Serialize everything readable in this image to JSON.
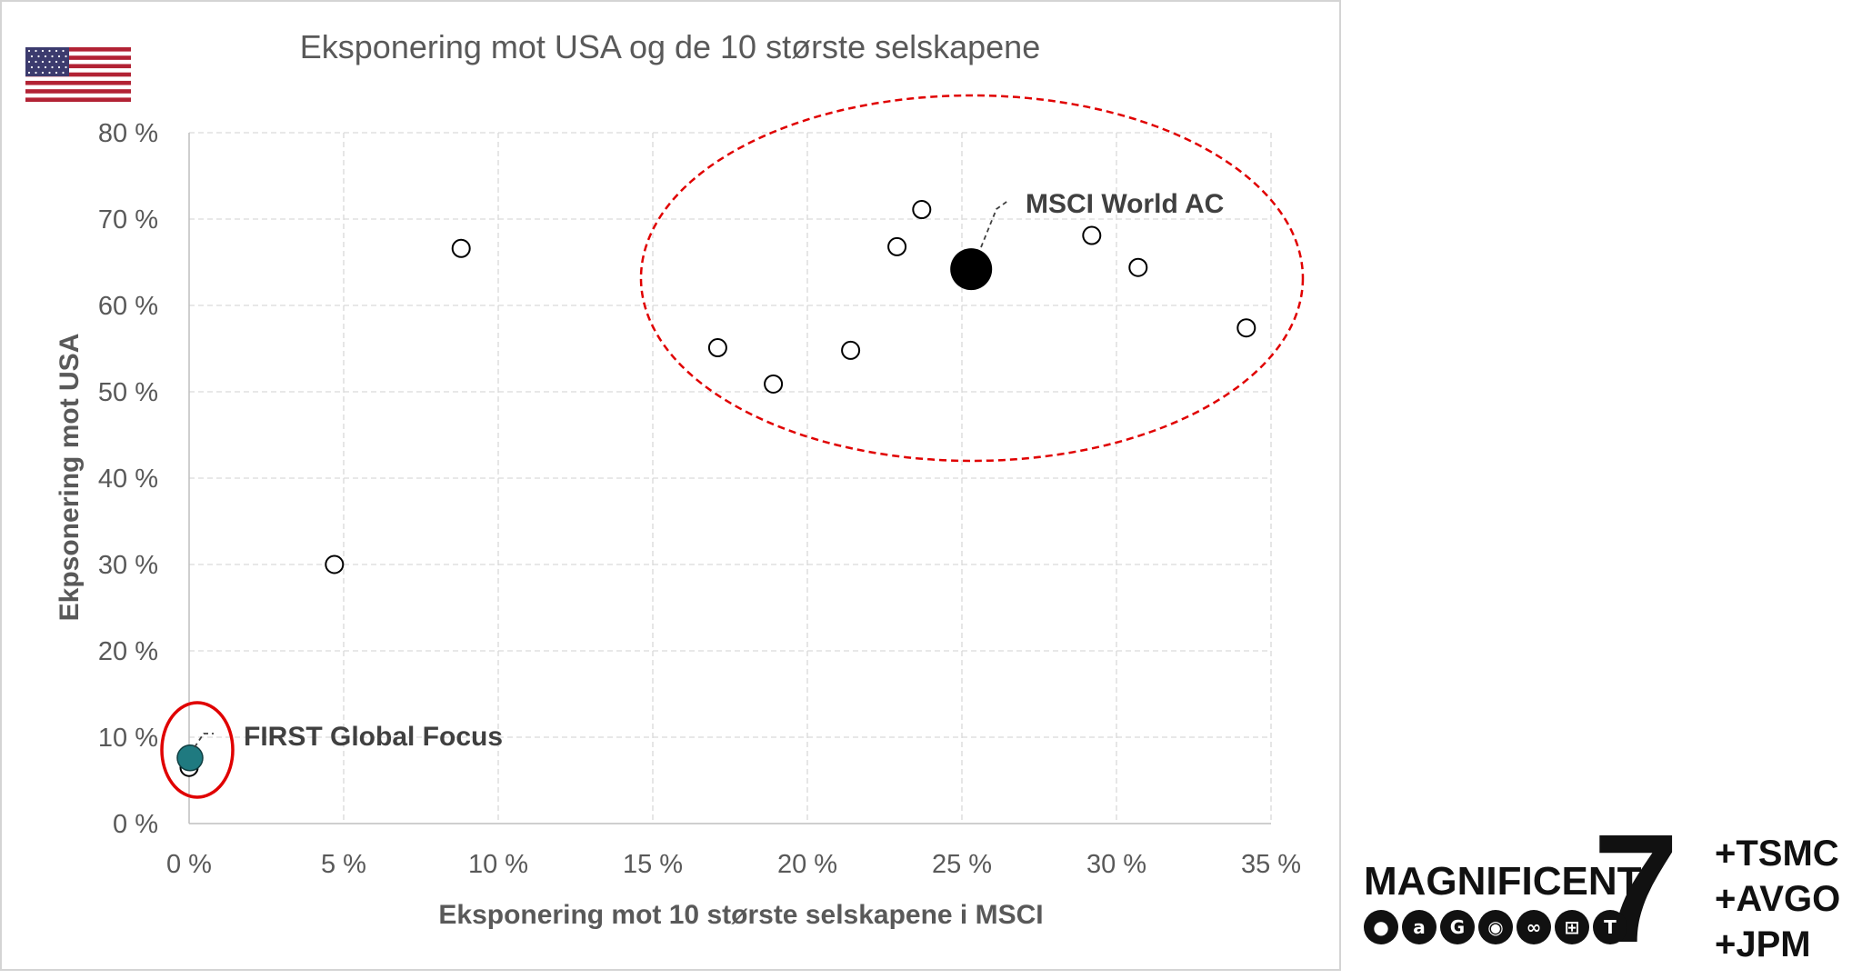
{
  "chart_data": {
    "type": "scatter",
    "title": "Eksponering mot USA og de 10 største selskapene",
    "xlabel": "Eksponering mot 10 største selskapene i MSCI",
    "ylabel": "Ekpsonering mot USA",
    "xlim": [
      0,
      35
    ],
    "ylim": [
      0,
      80
    ],
    "x_ticks": [
      "0 %",
      "5 %",
      "10 %",
      "15 %",
      "20 %",
      "25 %",
      "30 %",
      "35 %"
    ],
    "y_ticks": [
      "0 %",
      "10 %",
      "20 %",
      "30 %",
      "40 %",
      "50 %",
      "60 %",
      "70 %",
      "80 %"
    ],
    "grid": true,
    "points": [
      {
        "x": 0.0,
        "y": 6.5
      },
      {
        "x": 4.7,
        "y": 30.0
      },
      {
        "x": 8.8,
        "y": 66.6
      },
      {
        "x": 17.1,
        "y": 55.1
      },
      {
        "x": 18.9,
        "y": 50.9
      },
      {
        "x": 21.4,
        "y": 54.8
      },
      {
        "x": 22.9,
        "y": 66.8
      },
      {
        "x": 23.7,
        "y": 71.1
      },
      {
        "x": 29.2,
        "y": 68.1
      },
      {
        "x": 30.7,
        "y": 64.4
      },
      {
        "x": 34.2,
        "y": 57.4
      }
    ],
    "highlighted": [
      {
        "label": "MSCI World AC",
        "x": 25.3,
        "y": 64.2,
        "color": "#000000"
      },
      {
        "label": "FIRST Global Focus",
        "x": 0.0,
        "y": 7.6,
        "color": "#1f7a80"
      }
    ],
    "colors": {
      "open_marker_fill": "#ffffff",
      "marker_stroke": "#000000",
      "ellipse": "#e00000",
      "grid": "#d9d9d9"
    },
    "flag": "us-flag-icon"
  },
  "logo": {
    "word": "MAGNIFICENT",
    "digit": "7",
    "extras": [
      "+TSMC",
      "+AVGO",
      "+JPM"
    ],
    "icons": [
      "apple-icon",
      "amazon-icon",
      "google-icon",
      "nvidia-icon",
      "meta-icon",
      "microsoft-icon",
      "tesla-icon"
    ]
  }
}
